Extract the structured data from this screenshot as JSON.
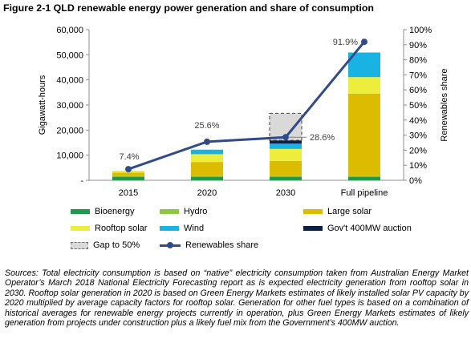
{
  "figure_title": "Figure 2-1 QLD renewable energy power generation and share of consumption",
  "chart_data": {
    "type": "bar",
    "stacked": true,
    "categories": [
      "2015",
      "2020",
      "2030",
      "Full pipeline"
    ],
    "ylabel": "Gigawatt-hours",
    "y2label": "Renewables share",
    "ylim": [
      0,
      60000
    ],
    "y2lim": [
      0,
      100
    ],
    "yticks": [
      "-",
      "10,000",
      "20,000",
      "30,000",
      "40,000",
      "50,000",
      "60,000"
    ],
    "y2ticks": [
      "0%",
      "10%",
      "20%",
      "30%",
      "40%",
      "50%",
      "60%",
      "70%",
      "80%",
      "90%",
      "100%"
    ],
    "grid": false,
    "legend_position": "bottom",
    "series": [
      {
        "name": "Bioenergy",
        "color": "#1f9a4c",
        "values": [
          1400,
          1400,
          1400,
          1400
        ]
      },
      {
        "name": "Hydro",
        "color": "#8dc63f",
        "values": [
          300,
          300,
          300,
          300
        ]
      },
      {
        "name": "Large solar",
        "color": "#dcbc00",
        "values": [
          1400,
          5600,
          6000,
          32800
        ]
      },
      {
        "name": "Rooftop solar",
        "color": "#eded3c",
        "values": [
          700,
          3100,
          4800,
          6600
        ]
      },
      {
        "name": "Wind",
        "color": "#19b3e3",
        "values": [
          0,
          1800,
          2100,
          9800
        ]
      },
      {
        "name": "Gov't 400MW auction",
        "color": "#0c1f45",
        "values": [
          0,
          0,
          1300,
          0
        ]
      },
      {
        "name": "Gap to 50%",
        "color": "#d9d9d9",
        "dashed": true,
        "values": [
          0,
          0,
          10800,
          0
        ]
      }
    ],
    "line": {
      "name": "Renewables share",
      "color": "#2f4b8a",
      "axis": "secondary",
      "values": [
        7.4,
        25.6,
        28.6,
        91.9
      ],
      "labels": [
        "7.4%",
        "25.6%",
        "28.6%",
        "91.9%"
      ]
    }
  },
  "sources": "Sources: Total electricity consumption is based on “native” electricity consumption taken from Australian Energy Market Operator’s March 2018 National Electricity Forecasting report as is expected electricity generation from rooftop solar in 2030. Rooftop solar generation in 2020 is based on Green Energy Markets estimates of likely installed solar PV capacity by 2020 multiplied by average capacity factors for rooftop solar. Generation for other fuel types is based on a combination of historical averages for renewable energy projects currently in operation, plus Green Energy Markets estimates of likely generation from projects under construction plus a likely fuel mix from the Government’s 400MW auction."
}
